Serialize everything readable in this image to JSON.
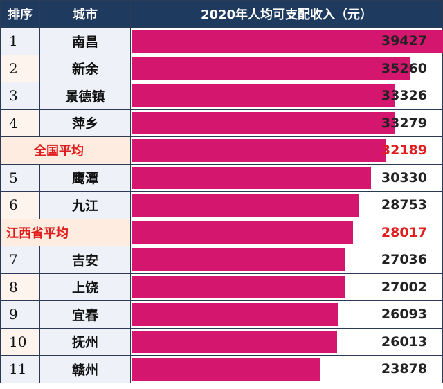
{
  "headers": {
    "rank": "排序",
    "city": "城市",
    "value": "2020年人均可支配收入（元）"
  },
  "chart_data": {
    "type": "bar",
    "title": "2020年人均可支配收入（元）",
    "xmax": 39427,
    "rows": [
      {
        "rank": "1",
        "city": "南昌",
        "value": 39427
      },
      {
        "rank": "2",
        "city": "新余",
        "value": 35260
      },
      {
        "rank": "3",
        "city": "景德镇",
        "value": 33326
      },
      {
        "rank": "4",
        "city": "萍乡",
        "value": 33279
      },
      {
        "rank": "",
        "city": "全国平均",
        "value": 32189,
        "highlight": true
      },
      {
        "rank": "5",
        "city": "鹰潭",
        "value": 30330
      },
      {
        "rank": "6",
        "city": "九江",
        "value": 28753
      },
      {
        "rank": "",
        "city": "江西省平均",
        "value": 28017,
        "highlight": true
      },
      {
        "rank": "7",
        "city": "吉安",
        "value": 27036
      },
      {
        "rank": "8",
        "city": "上饶",
        "value": 27002
      },
      {
        "rank": "9",
        "city": "宜春",
        "value": 26093
      },
      {
        "rank": "10",
        "city": "抚州",
        "value": 26013
      },
      {
        "rank": "11",
        "city": "赣州",
        "value": 23878
      }
    ],
    "colors": {
      "bar": "#d4166f",
      "header": "#1f3a5f",
      "highlight_text": "#e01e1e"
    }
  }
}
